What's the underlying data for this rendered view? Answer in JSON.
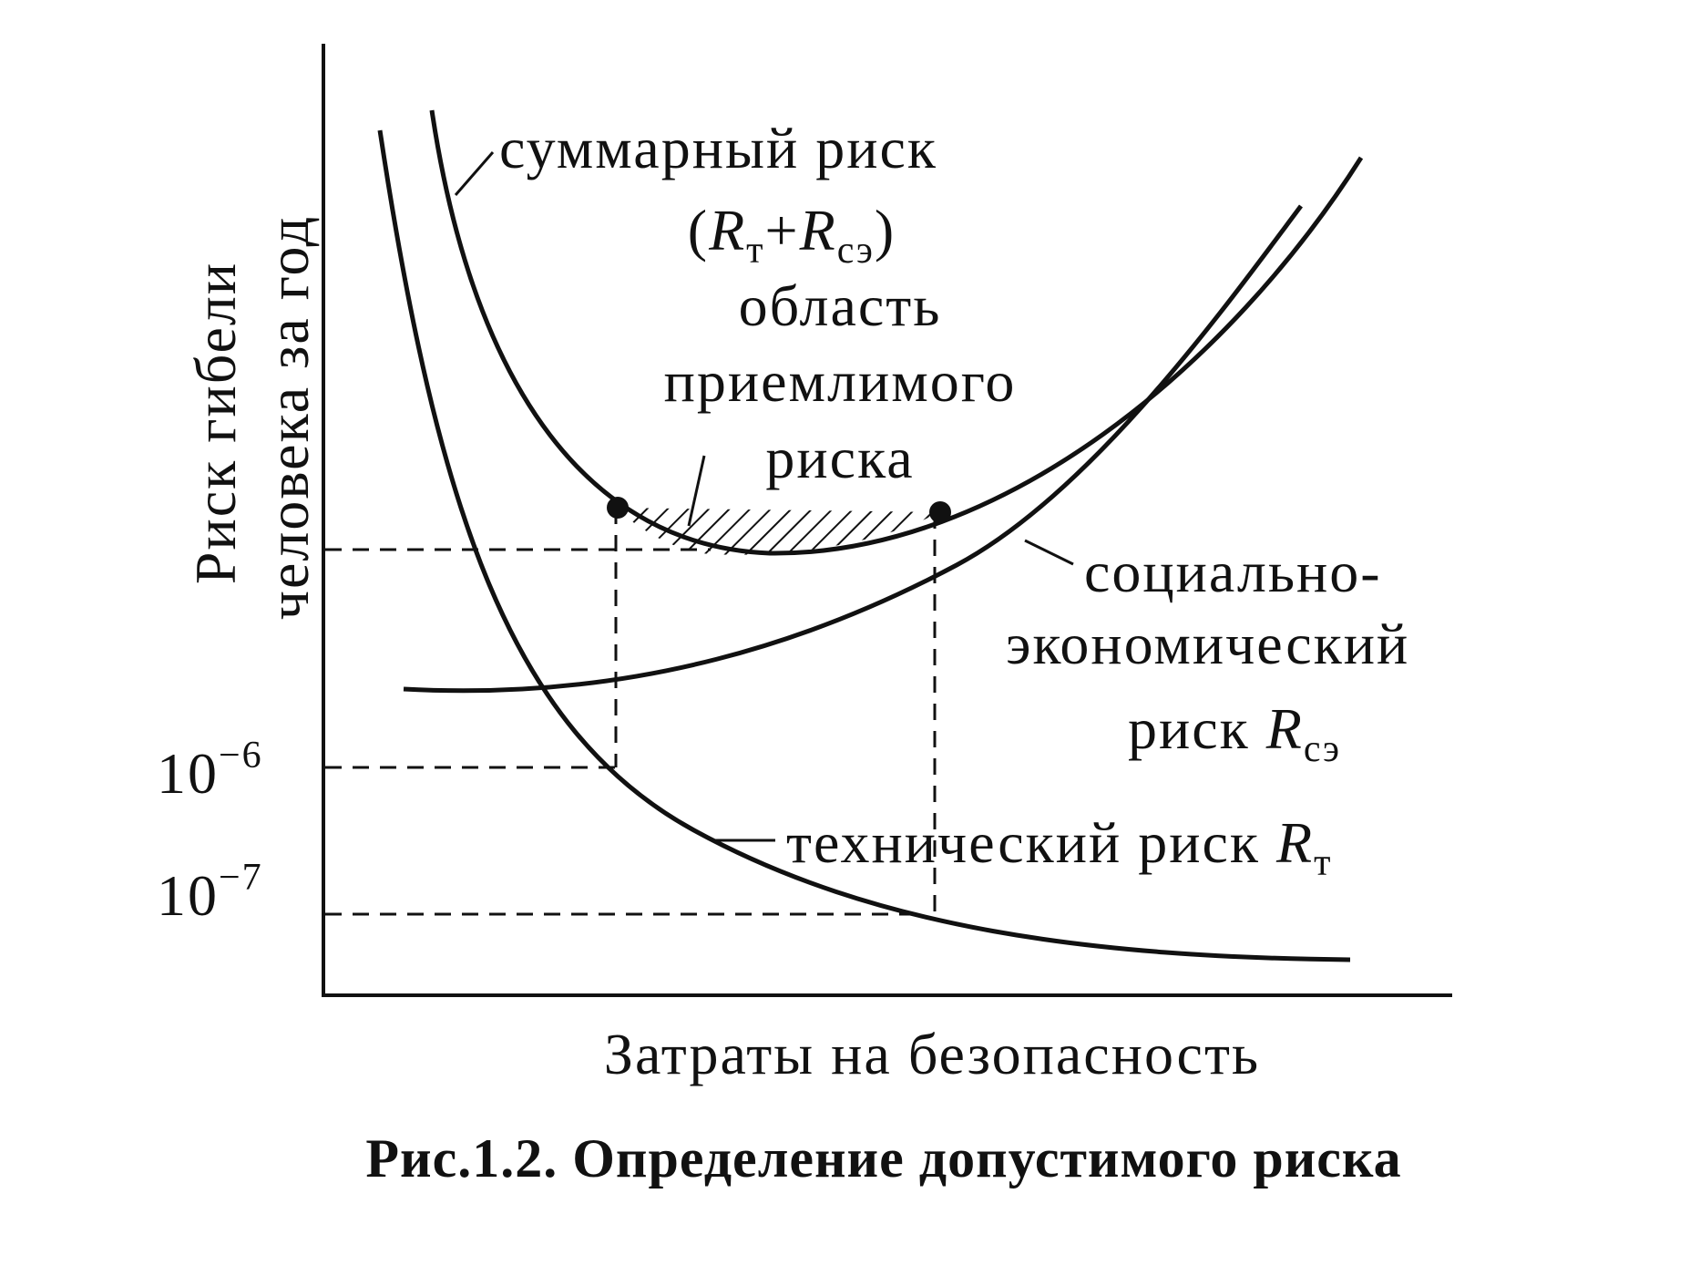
{
  "figure": {
    "y_axis_label": [
      "Риск гибели",
      "человека за год"
    ],
    "x_axis_label": "Затраты на безопасность",
    "ticks": [
      {
        "base": "10",
        "exponent": "−6"
      },
      {
        "base": "10",
        "exponent": "−7"
      }
    ],
    "total_risk": {
      "label": "суммарный риск",
      "formula": [
        {
          "text": "(",
          "italic": false,
          "sub": false
        },
        {
          "text": "R",
          "italic": true,
          "sub": false
        },
        {
          "text": "т",
          "italic": false,
          "sub": true
        },
        {
          "text": "+",
          "italic": false,
          "sub": false
        },
        {
          "text": "R",
          "italic": true,
          "sub": false
        },
        {
          "text": "сэ",
          "italic": false,
          "sub": true
        },
        {
          "text": ")",
          "italic": false,
          "sub": false
        }
      ]
    },
    "acceptable_region": [
      "область",
      "приемлимого",
      "риска"
    ],
    "socio_economic_risk": {
      "lines": [
        "социально-",
        "экономический"
      ],
      "last_line": [
        {
          "text": "риск ",
          "italic": false,
          "sub": false
        },
        {
          "text": "R",
          "italic": true,
          "sub": false
        },
        {
          "text": "сэ",
          "italic": false,
          "sub": true
        }
      ]
    },
    "technical_risk": [
      {
        "text": "технический риск ",
        "italic": false,
        "sub": false
      },
      {
        "text": "R",
        "italic": true,
        "sub": false
      },
      {
        "text": "т",
        "italic": false,
        "sub": true
      }
    ],
    "caption": "Рис.1.2. Определение допустимого риска"
  }
}
